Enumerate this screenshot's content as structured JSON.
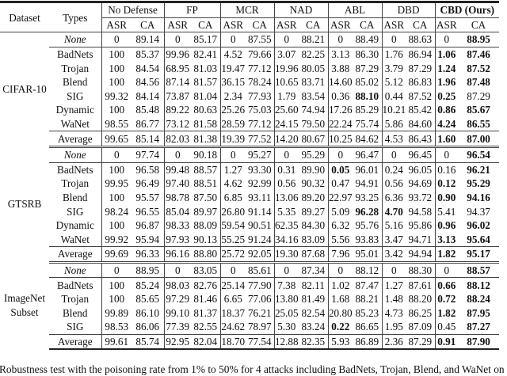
{
  "header": {
    "dataset": "Dataset",
    "types": "Types",
    "methods": [
      "No Defense",
      "FP",
      "MCR",
      "NAD",
      "ABL",
      "DBD",
      "CBD (Ours)"
    ],
    "method_bold": [
      false,
      false,
      false,
      false,
      false,
      false,
      true
    ],
    "sub": [
      "ASR",
      "CA"
    ]
  },
  "groups": [
    {
      "dataset": "CIFAR-10",
      "rows": [
        {
          "type": "None",
          "italic": true,
          "values": [
            "0",
            "89.14",
            "0",
            "85.17",
            "0",
            "87.55",
            "0",
            "88.21",
            "0",
            "88.49",
            "0",
            "88.63",
            "0",
            "88.95"
          ],
          "bold": [
            13
          ]
        },
        {
          "type": "BadNets",
          "values": [
            "100",
            "85.37",
            "99.96",
            "82.41",
            "4.52",
            "79.66",
            "3.07",
            "82.25",
            "3.13",
            "86.30",
            "1.76",
            "86.94",
            "1.06",
            "87.46"
          ],
          "bold": [
            12,
            13
          ]
        },
        {
          "type": "Trojan",
          "values": [
            "100",
            "84.54",
            "68.95",
            "81.03",
            "19.47",
            "77.12",
            "19.96",
            "80.05",
            "3.88",
            "87.29",
            "3.79",
            "87.29",
            "1.24",
            "87.52"
          ],
          "bold": [
            12,
            13
          ]
        },
        {
          "type": "Blend",
          "values": [
            "100",
            "84.56",
            "87.14",
            "81.57",
            "36.15",
            "78.24",
            "10.65",
            "83.71",
            "14.60",
            "85.02",
            "5.12",
            "86.83",
            "1.96",
            "87.48"
          ],
          "bold": [
            12,
            13
          ]
        },
        {
          "type": "SIG",
          "values": [
            "99.32",
            "84.14",
            "73.87",
            "81.04",
            "2.34",
            "77.93",
            "1.79",
            "83.54",
            "0.36",
            "88.10",
            "0.44",
            "87.52",
            "0.25",
            "87.29"
          ],
          "bold": [
            9,
            12
          ]
        },
        {
          "type": "Dynamic",
          "values": [
            "100",
            "85.48",
            "89.22",
            "80.63",
            "25.26",
            "75.03",
            "25.60",
            "74.94",
            "17.26",
            "85.29",
            "10.21",
            "85.42",
            "0.86",
            "85.67"
          ],
          "bold": [
            12,
            13
          ]
        },
        {
          "type": "WaNet",
          "values": [
            "98.55",
            "86.77",
            "73.12",
            "81.58",
            "28.59",
            "77.12",
            "24.15",
            "79.50",
            "22.24",
            "75.74",
            "5.86",
            "84.60",
            "4.24",
            "86.55"
          ],
          "bold": [
            12,
            13
          ]
        },
        {
          "type": "Average",
          "average": true,
          "values": [
            "99.65",
            "85.14",
            "82.03",
            "81.38",
            "19.39",
            "77.52",
            "14.20",
            "80.67",
            "10.25",
            "84.62",
            "4.53",
            "86.43",
            "1.60",
            "87.00"
          ],
          "bold": [
            12,
            13
          ]
        }
      ]
    },
    {
      "dataset": "GTSRB",
      "rows": [
        {
          "type": "None",
          "italic": true,
          "values": [
            "0",
            "97.74",
            "0",
            "90.18",
            "0",
            "95.27",
            "0",
            "95.29",
            "0",
            "96.47",
            "0",
            "96.45",
            "0",
            "96.54"
          ],
          "bold": [
            13
          ]
        },
        {
          "type": "BadNets",
          "values": [
            "100",
            "96.58",
            "99.48",
            "88.57",
            "1.27",
            "93.30",
            "0.31",
            "89.90",
            "0.05",
            "96.01",
            "0.24",
            "96.05",
            "0.16",
            "96.21"
          ],
          "bold": [
            8,
            13
          ]
        },
        {
          "type": "Trojan",
          "values": [
            "99.95",
            "96.49",
            "97.40",
            "88.51",
            "4.62",
            "92.99",
            "0.56",
            "90.32",
            "0.47",
            "94.91",
            "0.56",
            "94.69",
            "0.12",
            "95.29"
          ],
          "bold": [
            12,
            13
          ]
        },
        {
          "type": "Blend",
          "values": [
            "100",
            "95.57",
            "98.78",
            "87.50",
            "6.85",
            "93.11",
            "13.06",
            "89.20",
            "22.97",
            "93.25",
            "6.36",
            "93.72",
            "0.90",
            "94.16"
          ],
          "bold": [
            12,
            13
          ]
        },
        {
          "type": "SIG",
          "values": [
            "98.24",
            "96.55",
            "85.04",
            "89.97",
            "26.80",
            "91.14",
            "5.35",
            "89.27",
            "5.09",
            "96.28",
            "4.70",
            "94.58",
            "5.41",
            "94.37"
          ],
          "bold": [
            9,
            10
          ]
        },
        {
          "type": "Dynamic",
          "values": [
            "100",
            "96.87",
            "98.33",
            "88.09",
            "59.54",
            "90.51",
            "62.35",
            "84.30",
            "6.32",
            "95.76",
            "5.16",
            "95.86",
            "0.96",
            "96.02"
          ],
          "bold": [
            12,
            13
          ]
        },
        {
          "type": "WaNet",
          "values": [
            "99.92",
            "95.94",
            "97.93",
            "90.13",
            "55.25",
            "91.24",
            "34.16",
            "83.09",
            "5.56",
            "93.83",
            "3.47",
            "94.71",
            "3.13",
            "95.64"
          ],
          "bold": [
            12,
            13
          ]
        },
        {
          "type": "Average",
          "average": true,
          "values": [
            "99.69",
            "96.33",
            "96.16",
            "88.80",
            "25.72",
            "92.05",
            "19.30",
            "87.68",
            "7.96",
            "95.01",
            "3.42",
            "94.94",
            "1.82",
            "95.17"
          ],
          "bold": [
            12,
            13
          ]
        }
      ]
    },
    {
      "dataset": "ImageNet Subset",
      "rows": [
        {
          "type": "None",
          "italic": true,
          "values": [
            "0",
            "88.95",
            "0",
            "83.05",
            "0",
            "85.61",
            "0",
            "87.34",
            "0",
            "88.12",
            "0",
            "88.30",
            "0",
            "88.57"
          ],
          "bold": [
            13
          ]
        },
        {
          "type": "BadNets",
          "values": [
            "100",
            "85.24",
            "98.03",
            "82.76",
            "25.14",
            "77.90",
            "7.38",
            "82.11",
            "1.02",
            "87.47",
            "1.27",
            "87.61",
            "0.66",
            "88.12"
          ],
          "bold": [
            12,
            13
          ]
        },
        {
          "type": "Trojan",
          "values": [
            "100",
            "85.65",
            "97.29",
            "81.46",
            "6.65",
            "77.06",
            "13.80",
            "81.49",
            "1.68",
            "88.21",
            "1.48",
            "88.20",
            "0.72",
            "88.24"
          ],
          "bold": [
            12,
            13
          ]
        },
        {
          "type": "Blend",
          "values": [
            "99.89",
            "86.10",
            "99.10",
            "81.37",
            "18.37",
            "76.21",
            "25.05",
            "82.54",
            "20.80",
            "85.23",
            "4.73",
            "86.25",
            "1.82",
            "87.95"
          ],
          "bold": [
            12,
            13
          ]
        },
        {
          "type": "SIG",
          "values": [
            "98.53",
            "86.06",
            "77.39",
            "82.55",
            "24.62",
            "78.97",
            "5.30",
            "83.24",
            "0.22",
            "86.65",
            "1.95",
            "87.09",
            "0.45",
            "87.27"
          ],
          "bold": [
            8,
            13
          ]
        },
        {
          "type": "Average",
          "average": true,
          "values": [
            "99.61",
            "85.74",
            "92.95",
            "82.04",
            "18.70",
            "77.54",
            "12.88",
            "82.35",
            "5.93",
            "86.89",
            "2.36",
            "87.29",
            "0.91",
            "87.90"
          ],
          "bold": [
            12,
            13
          ]
        }
      ]
    }
  ],
  "caption": "Robustness test with the poisoning rate from 1% to 50% for 4 attacks including BadNets, Trojan, Blend, and WaNet on ("
}
